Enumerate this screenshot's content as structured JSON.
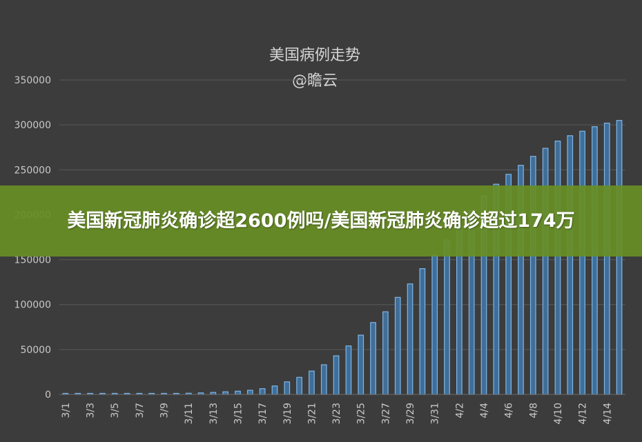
{
  "chart_data": {
    "type": "bar",
    "title": "美国病例走势",
    "subtitle": "@瞻云",
    "xlabel": "",
    "ylabel": "",
    "ylim": [
      0,
      350000
    ],
    "yticks": [
      0,
      50000,
      100000,
      150000,
      200000,
      250000,
      300000,
      350000
    ],
    "ytick_labels": [
      "0",
      "50000",
      "100000",
      "150000",
      "200000",
      "250000",
      "300000",
      "350000"
    ],
    "grid": true,
    "legend": "none",
    "categories": [
      "3/1",
      "3/2",
      "3/3",
      "3/4",
      "3/5",
      "3/6",
      "3/7",
      "3/8",
      "3/9",
      "3/10",
      "3/11",
      "3/12",
      "3/13",
      "3/14",
      "3/15",
      "3/16",
      "3/17",
      "3/18",
      "3/19",
      "3/20",
      "3/21",
      "3/22",
      "3/23",
      "3/24",
      "3/25",
      "3/26",
      "3/27",
      "3/28",
      "3/29",
      "3/30",
      "3/31",
      "4/1",
      "4/2",
      "4/3",
      "4/4",
      "4/5",
      "4/6",
      "4/7",
      "4/8",
      "4/9",
      "4/10",
      "4/11",
      "4/12",
      "4/13",
      "4/14",
      "4/15"
    ],
    "xtick_labels": [
      "3/1",
      "3/3",
      "3/5",
      "3/7",
      "3/9",
      "3/11",
      "3/13",
      "3/15",
      "3/17",
      "3/19",
      "3/21",
      "3/23",
      "3/25",
      "3/27",
      "3/29",
      "3/31",
      "4/2",
      "4/4",
      "4/6",
      "4/8",
      "4/10",
      "4/12",
      "4/14"
    ],
    "values": [
      75,
      100,
      125,
      160,
      220,
      320,
      440,
      560,
      700,
      1000,
      1300,
      1700,
      2200,
      2900,
      3600,
      4600,
      6400,
      9400,
      14000,
      19000,
      26000,
      33000,
      43000,
      54000,
      66000,
      80000,
      92000,
      108000,
      123000,
      140000,
      155000,
      172000,
      188000,
      205000,
      221000,
      234000,
      245000,
      255000,
      265000,
      274000,
      282000,
      288000,
      293000,
      298000,
      302000,
      305000
    ],
    "colors": {
      "background": "#3c3c3c",
      "bar_fill": "#3f6f99",
      "bar_edge": "#7fb6e8",
      "grid": "#5a5a5a",
      "text": "#c9c9c9"
    }
  },
  "banner": {
    "text": "美国新冠肺炎确诊超2600例吗/美国新冠肺炎确诊超过174万",
    "color": "#688e26"
  }
}
